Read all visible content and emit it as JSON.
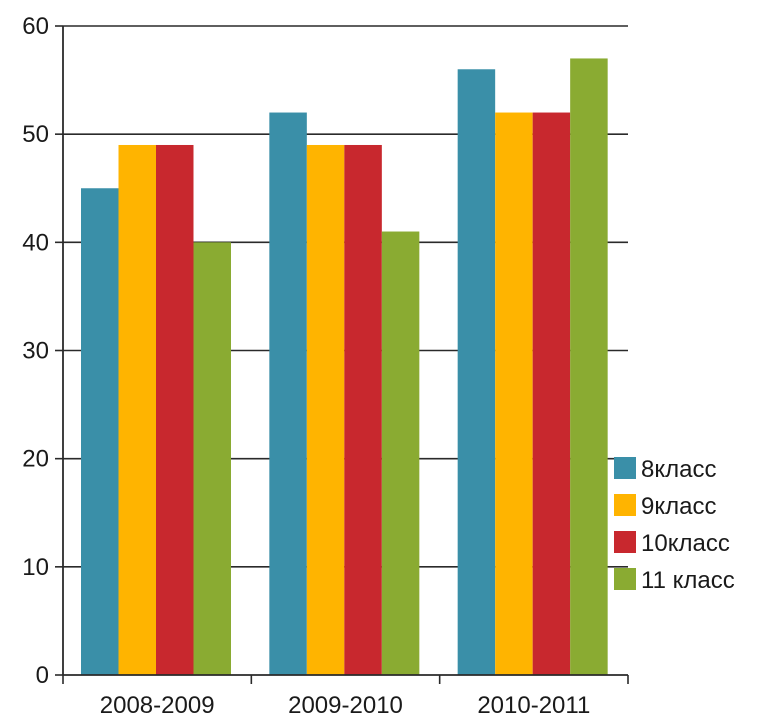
{
  "chart_data": {
    "type": "bar",
    "title": "",
    "xlabel": "",
    "ylabel": "",
    "categories": [
      "2008-2009",
      "2009-2010",
      "2010-2011"
    ],
    "series": [
      {
        "name": "8класс",
        "values": [
          45,
          52,
          56
        ],
        "color": "#3a8fa8"
      },
      {
        "name": "9класс",
        "values": [
          49,
          49,
          52
        ],
        "color": "#ffb400"
      },
      {
        "name": "10класс",
        "values": [
          49,
          49,
          52
        ],
        "color": "#c8282e"
      },
      {
        "name": "11 класс",
        "values": [
          40,
          41,
          57
        ],
        "color": "#8aab32"
      }
    ],
    "ylim": [
      0,
      60
    ],
    "yticks": [
      0,
      10,
      20,
      30,
      40,
      50,
      60
    ],
    "grid": true,
    "legend": "right"
  }
}
